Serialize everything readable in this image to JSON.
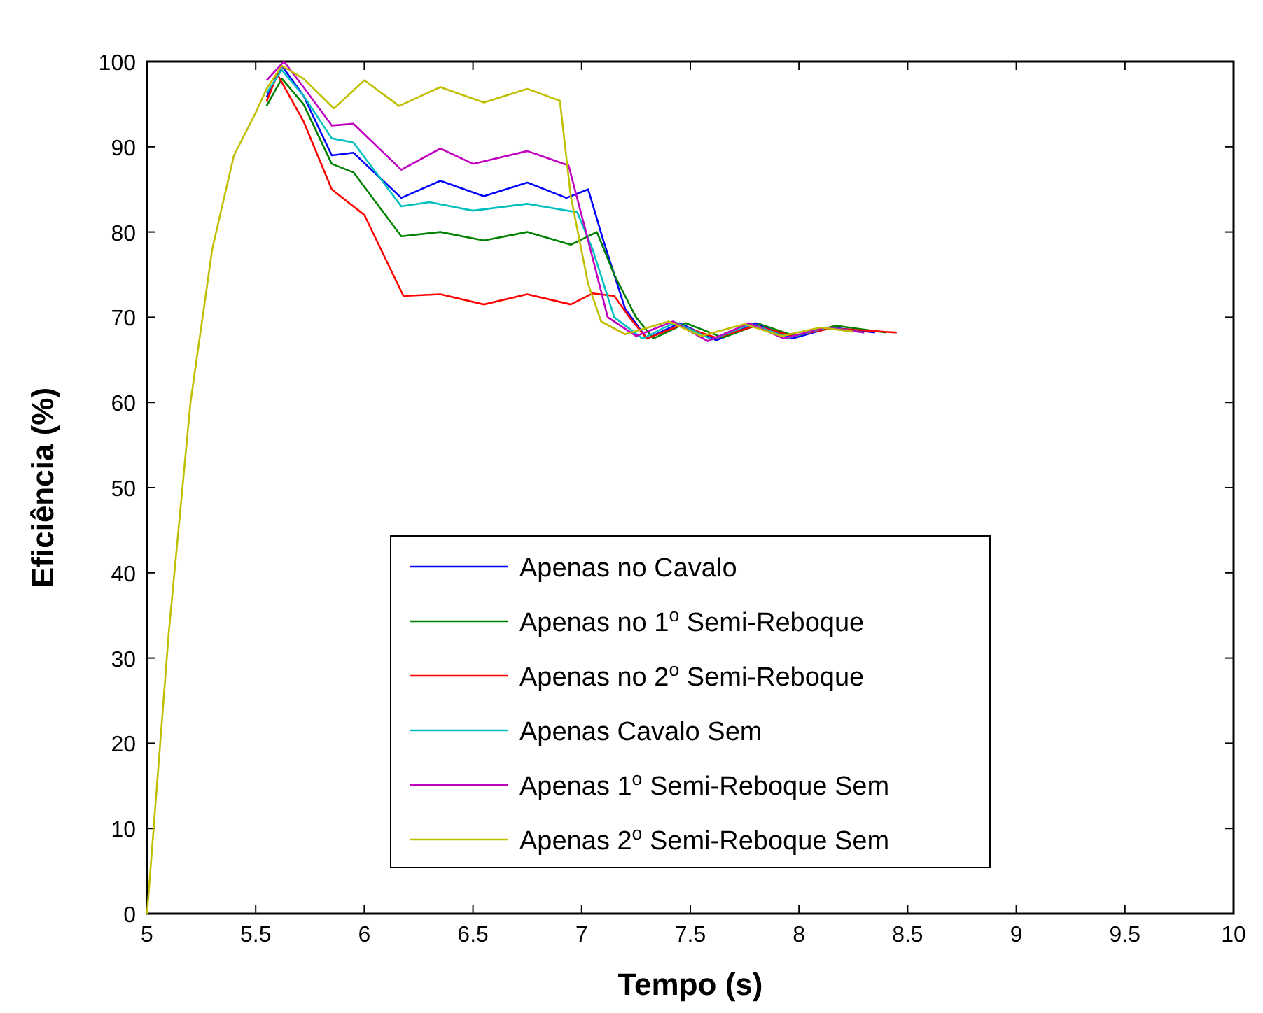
{
  "chart_data": {
    "type": "line",
    "xlabel": "Tempo (s)",
    "ylabel": "Eficiência (%)",
    "xlim": [
      5,
      10
    ],
    "ylim": [
      0,
      100
    ],
    "xticks": [
      5,
      5.5,
      6,
      6.5,
      7,
      7.5,
      8,
      8.5,
      9,
      9.5,
      10
    ],
    "yticks": [
      0,
      10,
      20,
      30,
      40,
      50,
      60,
      70,
      80,
      90,
      100
    ],
    "grid": false,
    "legend": "bottom",
    "marker": "none",
    "line_style": "solid",
    "series": [
      {
        "name": "Apenas no Cavalo",
        "color": "#0000ff",
        "x": [
          5.55,
          5.62,
          5.72,
          5.85,
          5.95,
          6.17,
          6.35,
          6.55,
          6.75,
          6.93,
          7.03,
          7.1,
          7.2,
          7.3,
          7.45,
          7.62,
          7.8,
          7.97,
          8.15,
          8.35
        ],
        "values": [
          95.8,
          99.5,
          96,
          89,
          89.3,
          84,
          86,
          84.2,
          85.8,
          84,
          85,
          79,
          71,
          67.5,
          69.3,
          67.3,
          69.3,
          67.5,
          68.8,
          68.2
        ]
      },
      {
        "name": "Apenas no 1$^{o}$ Semi-Reboque",
        "color": "#008000",
        "x": [
          5.55,
          5.62,
          5.72,
          5.85,
          5.95,
          6.17,
          6.35,
          6.55,
          6.75,
          6.95,
          7.07,
          7.15,
          7.25,
          7.33,
          7.48,
          7.65,
          7.82,
          7.98,
          8.17,
          8.4
        ],
        "values": [
          94.8,
          98,
          95,
          88,
          87,
          79.5,
          80,
          79,
          80,
          78.5,
          80,
          75,
          70,
          67.5,
          69.3,
          67.6,
          69.2,
          67.8,
          69,
          68.2
        ]
      },
      {
        "name": "Apenas no 2$^{o}$ Semi-Reboque",
        "color": "#ff0000",
        "x": [
          5.55,
          5.6,
          5.72,
          5.85,
          6,
          6.18,
          6.35,
          6.55,
          6.75,
          6.95,
          7.05,
          7.15,
          7.22,
          7.3,
          7.45,
          7.62,
          7.8,
          7.97,
          8.15,
          8.45
        ],
        "values": [
          95.3,
          98.5,
          93,
          85,
          82,
          72.5,
          72.7,
          71.5,
          72.7,
          71.5,
          72.8,
          72.5,
          70,
          67.5,
          69,
          67.6,
          69,
          67.8,
          68.7,
          68.2
        ]
      },
      {
        "name": "Apenas Cavalo Sem",
        "color": "#00bfbf",
        "x": [
          5.55,
          5.62,
          5.72,
          5.85,
          5.95,
          6.17,
          6.3,
          6.5,
          6.75,
          6.98,
          7.05,
          7.15,
          7.28,
          7.43,
          7.6,
          7.78,
          7.95,
          8.13,
          8.3
        ],
        "values": [
          96.3,
          99,
          96,
          91,
          90.5,
          83,
          83.5,
          82.5,
          83.3,
          82.3,
          78,
          70,
          67.5,
          69.4,
          67.4,
          69.2,
          67.6,
          68.8,
          68.2
        ]
      },
      {
        "name": "Apenas 1$^{o}$ Semi-Reboque Sem",
        "color": "#bf00bf",
        "x": [
          5.55,
          5.63,
          5.72,
          5.85,
          5.95,
          6.17,
          6.35,
          6.5,
          6.75,
          6.94,
          7.02,
          7.12,
          7.25,
          7.42,
          7.58,
          7.77,
          7.93,
          8.12,
          8.3
        ],
        "values": [
          97.8,
          100,
          97,
          92.5,
          92.7,
          87.3,
          89.8,
          88,
          89.5,
          87.8,
          80,
          70,
          67.8,
          69.5,
          67.2,
          69.3,
          67.5,
          68.8,
          68.2
        ]
      },
      {
        "name": "Apenas 2$^{o}$ Semi-Reboque Sem",
        "color": "#bfbf00",
        "x": [
          5,
          5.1,
          5.2,
          5.3,
          5.4,
          5.5,
          5.55,
          5.62,
          5.72,
          5.86,
          6,
          6.16,
          6.35,
          6.55,
          6.75,
          6.9,
          6.95,
          7.03,
          7.09,
          7.2,
          7.4,
          7.55,
          7.75,
          7.92,
          8.1,
          8.25
        ],
        "values": [
          0,
          33,
          60,
          78,
          89,
          94,
          96.8,
          99.5,
          98,
          94.5,
          97.8,
          94.8,
          97,
          95.2,
          96.8,
          95.4,
          84.2,
          73.9,
          69.5,
          68,
          69.5,
          67.8,
          69.2,
          67.8,
          68.8,
          68.3
        ]
      }
    ]
  }
}
